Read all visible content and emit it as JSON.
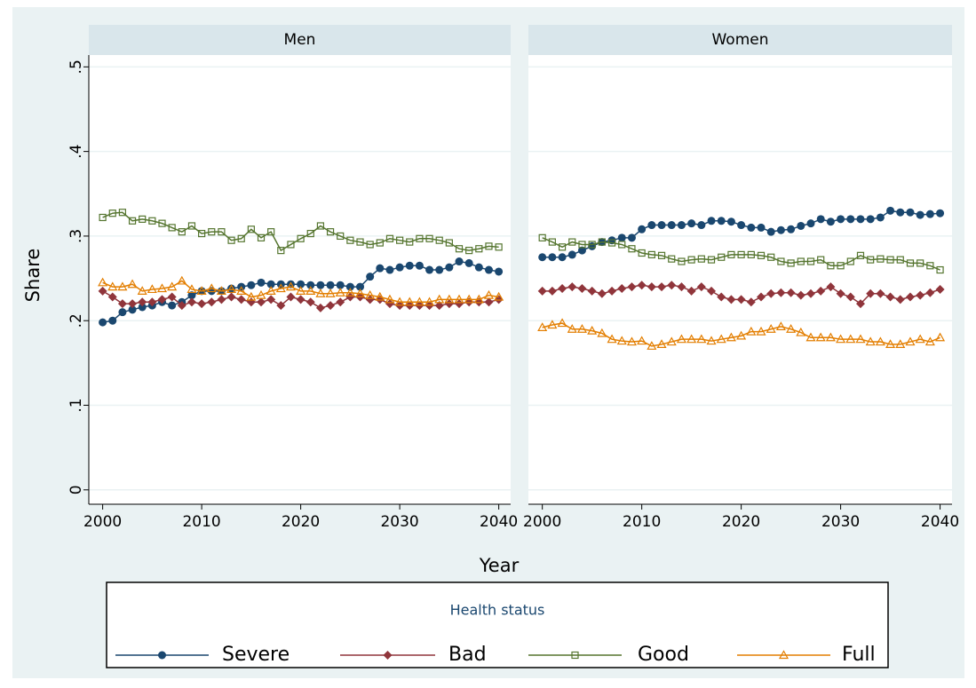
{
  "chart_data": {
    "type": "line",
    "x_label": "Year",
    "y_label": "Share",
    "legend_title": "Health status",
    "x": [
      2000,
      2001,
      2002,
      2003,
      2004,
      2005,
      2006,
      2007,
      2008,
      2009,
      2010,
      2011,
      2012,
      2013,
      2014,
      2015,
      2016,
      2017,
      2018,
      2019,
      2020,
      2021,
      2022,
      2023,
      2024,
      2025,
      2026,
      2027,
      2028,
      2029,
      2030,
      2031,
      2032,
      2033,
      2034,
      2035,
      2036,
      2037,
      2038,
      2039,
      2040
    ],
    "xlim": [
      1998.6,
      2041.2
    ],
    "xticks": [
      2000,
      2010,
      2020,
      2030,
      2040
    ],
    "ylim": [
      -0.017,
      0.514
    ],
    "yticks": [
      {
        "value": 0,
        "label": "0"
      },
      {
        "value": 0.1,
        "label": ".1"
      },
      {
        "value": 0.2,
        "label": ".2"
      },
      {
        "value": 0.3,
        "label": ".3"
      },
      {
        "value": 0.4,
        "label": ".4"
      },
      {
        "value": 0.5,
        "label": ".5"
      }
    ],
    "grid": true,
    "panels": [
      {
        "title": "Men",
        "series": [
          {
            "name": "Severe",
            "color": "#1a476f",
            "marker": "circle",
            "values": [
              0.198,
              0.2,
              0.21,
              0.213,
              0.216,
              0.218,
              0.222,
              0.218,
              0.222,
              0.23,
              0.235,
              0.235,
              0.235,
              0.238,
              0.24,
              0.242,
              0.245,
              0.243,
              0.243,
              0.243,
              0.243,
              0.242,
              0.242,
              0.242,
              0.242,
              0.24,
              0.24,
              0.252,
              0.262,
              0.26,
              0.263,
              0.265,
              0.265,
              0.26,
              0.26,
              0.263,
              0.27,
              0.268,
              0.263,
              0.26,
              0.258
            ]
          },
          {
            "name": "Bad",
            "color": "#90353b",
            "marker": "diamond",
            "values": [
              0.235,
              0.228,
              0.22,
              0.22,
              0.222,
              0.222,
              0.225,
              0.228,
              0.218,
              0.222,
              0.22,
              0.222,
              0.225,
              0.228,
              0.225,
              0.222,
              0.222,
              0.225,
              0.218,
              0.228,
              0.225,
              0.222,
              0.215,
              0.218,
              0.222,
              0.228,
              0.228,
              0.225,
              0.225,
              0.22,
              0.218,
              0.218,
              0.218,
              0.218,
              0.218,
              0.22,
              0.22,
              0.222,
              0.222,
              0.222,
              0.225
            ]
          },
          {
            "name": "Good",
            "color": "#55752f",
            "marker": "square",
            "values": [
              0.322,
              0.327,
              0.328,
              0.318,
              0.32,
              0.318,
              0.315,
              0.31,
              0.305,
              0.312,
              0.303,
              0.305,
              0.305,
              0.295,
              0.297,
              0.308,
              0.298,
              0.305,
              0.283,
              0.29,
              0.297,
              0.303,
              0.312,
              0.305,
              0.3,
              0.295,
              0.293,
              0.29,
              0.292,
              0.297,
              0.295,
              0.293,
              0.297,
              0.297,
              0.295,
              0.292,
              0.285,
              0.283,
              0.285,
              0.288,
              0.287
            ]
          },
          {
            "name": "Full",
            "color": "#e37e00",
            "marker": "triangle",
            "values": [
              0.245,
              0.24,
              0.24,
              0.243,
              0.235,
              0.237,
              0.238,
              0.24,
              0.247,
              0.237,
              0.235,
              0.238,
              0.235,
              0.237,
              0.235,
              0.228,
              0.23,
              0.235,
              0.238,
              0.24,
              0.235,
              0.235,
              0.232,
              0.232,
              0.233,
              0.233,
              0.232,
              0.23,
              0.228,
              0.225,
              0.222,
              0.222,
              0.222,
              0.222,
              0.225,
              0.225,
              0.225,
              0.225,
              0.225,
              0.23,
              0.228
            ]
          }
        ]
      },
      {
        "title": "Women",
        "series": [
          {
            "name": "Severe",
            "color": "#1a476f",
            "marker": "circle",
            "values": [
              0.275,
              0.275,
              0.275,
              0.278,
              0.283,
              0.288,
              0.293,
              0.295,
              0.298,
              0.298,
              0.308,
              0.313,
              0.313,
              0.313,
              0.313,
              0.315,
              0.313,
              0.318,
              0.318,
              0.317,
              0.313,
              0.31,
              0.31,
              0.305,
              0.307,
              0.308,
              0.312,
              0.315,
              0.32,
              0.317,
              0.32,
              0.32,
              0.32,
              0.32,
              0.322,
              0.33,
              0.328,
              0.328,
              0.325,
              0.326,
              0.327
            ]
          },
          {
            "name": "Bad",
            "color": "#90353b",
            "marker": "diamond",
            "values": [
              0.235,
              0.235,
              0.238,
              0.24,
              0.238,
              0.235,
              0.232,
              0.235,
              0.238,
              0.24,
              0.242,
              0.24,
              0.24,
              0.242,
              0.24,
              0.235,
              0.24,
              0.235,
              0.228,
              0.225,
              0.225,
              0.222,
              0.228,
              0.232,
              0.233,
              0.233,
              0.23,
              0.232,
              0.235,
              0.24,
              0.232,
              0.228,
              0.22,
              0.232,
              0.232,
              0.228,
              0.225,
              0.228,
              0.23,
              0.233,
              0.237
            ]
          },
          {
            "name": "Good",
            "color": "#55752f",
            "marker": "square",
            "values": [
              0.298,
              0.293,
              0.287,
              0.293,
              0.29,
              0.29,
              0.293,
              0.292,
              0.29,
              0.285,
              0.28,
              0.278,
              0.277,
              0.273,
              0.27,
              0.272,
              0.273,
              0.272,
              0.275,
              0.278,
              0.278,
              0.278,
              0.277,
              0.275,
              0.27,
              0.268,
              0.27,
              0.27,
              0.272,
              0.265,
              0.265,
              0.27,
              0.277,
              0.272,
              0.273,
              0.272,
              0.272,
              0.268,
              0.268,
              0.265,
              0.26
            ]
          },
          {
            "name": "Full",
            "color": "#e37e00",
            "marker": "triangle",
            "values": [
              0.192,
              0.195,
              0.197,
              0.19,
              0.19,
              0.188,
              0.185,
              0.178,
              0.176,
              0.175,
              0.176,
              0.17,
              0.172,
              0.175,
              0.178,
              0.178,
              0.178,
              0.176,
              0.178,
              0.18,
              0.182,
              0.187,
              0.187,
              0.19,
              0.193,
              0.19,
              0.186,
              0.18,
              0.18,
              0.18,
              0.178,
              0.178,
              0.178,
              0.175,
              0.175,
              0.172,
              0.172,
              0.175,
              0.178,
              0.175,
              0.18
            ]
          }
        ]
      }
    ]
  }
}
